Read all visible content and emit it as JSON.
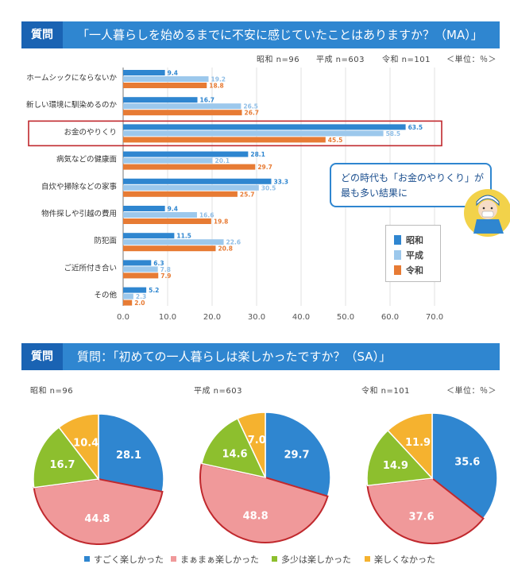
{
  "section1": {
    "label": "質問",
    "question": "「一人暮らしを始めるまでに不安に感じていたことはありますか？（MA）」",
    "sample_showa": "昭和 n=96",
    "sample_heisei": "平成 n=603",
    "sample_reiwa": "令和 n=101",
    "unit": "＜単位：％＞"
  },
  "section2": {
    "label": "質問",
    "question": "質問：「初めての一人暮らしは楽しかったですか？（SA）」",
    "unit": "＜単位：％＞"
  },
  "callout": {
    "text": "どの時代も「お金のやりくり」が\n最も多い結果に"
  },
  "colors": {
    "showa": "#2f86d0",
    "heisei": "#9cc8ec",
    "reiwa": "#e77b34",
    "highlight": "#c0282d",
    "pie_very": "#2f86d0",
    "pie_somewhat": "#f0999a",
    "pie_little": "#8dbf2e",
    "pie_not": "#f5b22f"
  },
  "chart_data": [
    {
      "type": "bar",
      "orientation": "horizontal",
      "categories": [
        "ホームシックにならないか",
        "新しい環境に馴染めるのか",
        "お金のやりくり",
        "病気などの健康面",
        "自炊や掃除などの家事",
        "物件探しや引越の費用",
        "防犯面",
        "ご近所付き合い",
        "その他"
      ],
      "series": [
        {
          "name": "昭和",
          "values": [
            9.4,
            16.7,
            63.5,
            28.1,
            33.3,
            9.4,
            11.5,
            6.3,
            5.2
          ]
        },
        {
          "name": "平成",
          "values": [
            19.2,
            26.5,
            58.5,
            20.1,
            30.5,
            16.6,
            22.6,
            7.8,
            2.3
          ]
        },
        {
          "name": "令和",
          "values": [
            18.8,
            26.7,
            45.5,
            29.7,
            25.7,
            19.8,
            20.8,
            7.9,
            2.0
          ]
        }
      ],
      "xlim": [
        0,
        70
      ],
      "xticks": [
        "0.0",
        "10.0",
        "20.0",
        "30.0",
        "40.0",
        "50.0",
        "60.0",
        "70.0"
      ],
      "highlight_category": "お金のやりくり",
      "legend_position": "right"
    },
    {
      "type": "pie",
      "title": "昭和 n=96",
      "labels": [
        "すごく楽しかった",
        "まぁまぁ楽しかった",
        "多少は楽しかった",
        "楽しくなかった"
      ],
      "values": [
        28.1,
        44.8,
        16.7,
        10.4
      ]
    },
    {
      "type": "pie",
      "title": "平成 n=603",
      "labels": [
        "すごく楽しかった",
        "まぁまぁ楽しかった",
        "多少は楽しかった",
        "楽しくなかった"
      ],
      "values": [
        29.7,
        48.8,
        14.6,
        7.0
      ]
    },
    {
      "type": "pie",
      "title": "令和 n=101",
      "labels": [
        "すごく楽しかった",
        "まぁまぁ楽しかった",
        "多少は楽しかった",
        "楽しくなかった"
      ],
      "values": [
        35.6,
        37.6,
        14.9,
        11.9
      ]
    }
  ]
}
